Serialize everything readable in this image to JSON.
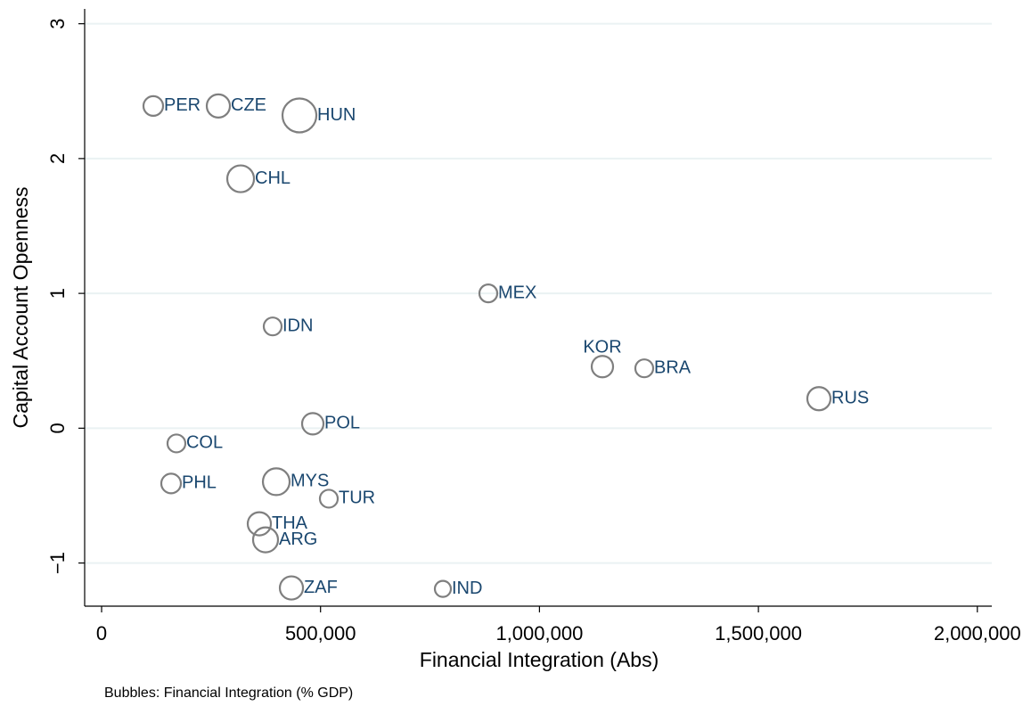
{
  "chart_data": {
    "type": "bubble",
    "x_label": "Financial Integration (Abs)",
    "y_label": "Capital Account Openness",
    "note": "Bubbles: Financial Integration (% GDP)",
    "labels": [
      "PER",
      "CZE",
      "HUN",
      "CHL",
      "MEX",
      "IDN",
      "KOR",
      "BRA",
      "RUS",
      "POL",
      "COL",
      "PHL",
      "MYS",
      "TUR",
      "THA",
      "ARG",
      "ZAF",
      "IND"
    ],
    "x": [
      118000,
      266600,
      451800,
      317500,
      883200,
      390700,
      1143700,
      1239300,
      1638200,
      482300,
      170900,
      158700,
      398900,
      518900,
      360200,
      374400,
      433500,
      779400
    ],
    "y": [
      2.39,
      2.39,
      2.32,
      1.85,
      1.0,
      0.755,
      0.457,
      0.444,
      0.219,
      0.033,
      -0.113,
      -0.41,
      -0.397,
      -0.523,
      -0.709,
      -0.828,
      -1.185,
      -1.192
    ],
    "sizes": [
      121,
      169,
      361,
      225,
      100,
      100,
      144,
      100,
      169,
      144,
      100,
      121,
      225,
      100,
      169,
      196,
      169,
      81
    ],
    "color": "#7f7f7f",
    "label_color": "#1a476f",
    "xlim": [
      -38700,
      2033000
    ],
    "ylim": [
      -1.32,
      3.11
    ],
    "xticks": [
      0,
      {
        "value": 500000,
        "label": "500,000"
      },
      {
        "value": 1000000,
        "label": "1,000,000"
      },
      {
        "value": 1500000,
        "label": "1,500,000"
      },
      {
        "value": 2000000,
        "label": "2,000,000"
      }
    ],
    "yticks": [
      {
        "value": -1,
        "label": "−1"
      },
      0,
      1,
      2,
      3
    ],
    "grid": true
  }
}
